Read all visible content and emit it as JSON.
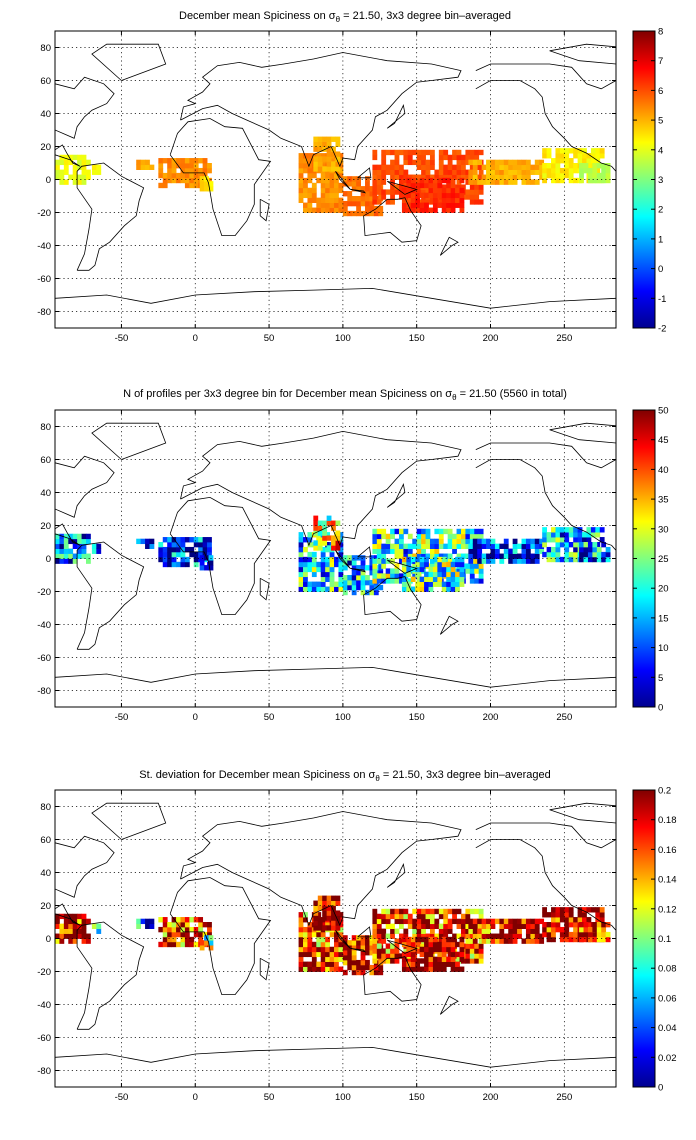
{
  "chart_data": [
    {
      "type": "heatmap",
      "title": "December mean Spiciness on σθ = 21.50, 3x3 degree bin–averaged",
      "title_prefix": "December mean Spiciness on σ",
      "title_sub": "θ",
      "title_suffix": " = 21.50, 3x3 degree bin–averaged",
      "xticks": [
        "-50",
        "0",
        "50",
        "100",
        "150",
        "200",
        "250"
      ],
      "yticks": [
        "80",
        "60",
        "40",
        "20",
        "0",
        "-20",
        "-40",
        "-60",
        "-80"
      ],
      "xlim": [
        -95,
        285
      ],
      "ylim": [
        -90,
        90
      ],
      "grid": true,
      "colorbar": {
        "min": -2,
        "max": 8,
        "ticks": [
          "8",
          "7",
          "6",
          "5",
          "4",
          "3",
          "2",
          "1",
          "0",
          "-1",
          "-2"
        ],
        "colormap": "jet"
      },
      "regions": [
        {
          "lon": [
            -95,
            -72
          ],
          "lat": [
            -3,
            14
          ],
          "value": 4.0
        },
        {
          "lon": [
            -70,
            -65
          ],
          "lat": [
            3,
            9
          ],
          "value": 4.3
        },
        {
          "lon": [
            -40,
            -28
          ],
          "lat": [
            6,
            11
          ],
          "value": 5.0
        },
        {
          "lon": [
            -25,
            10
          ],
          "lat": [
            -5,
            12
          ],
          "value": 5.3
        },
        {
          "lon": [
            3,
            10
          ],
          "lat": [
            -7,
            0
          ],
          "value": 4.5
        },
        {
          "lon": [
            70,
            100
          ],
          "lat": [
            -20,
            15
          ],
          "value": 5.3
        },
        {
          "lon": [
            80,
            98
          ],
          "lat": [
            5,
            24
          ],
          "value": 5.0
        },
        {
          "lon": [
            100,
            125
          ],
          "lat": [
            -22,
            0
          ],
          "value": 5.6
        },
        {
          "lon": [
            120,
            195
          ],
          "lat": [
            -15,
            18
          ],
          "value": 6.0
        },
        {
          "lon": [
            140,
            180
          ],
          "lat": [
            -20,
            0
          ],
          "value": 6.3
        },
        {
          "lon": [
            185,
            235
          ],
          "lat": [
            -3,
            12
          ],
          "value": 5.0
        },
        {
          "lon": [
            235,
            275
          ],
          "lat": [
            -2,
            18
          ],
          "value": 4.3
        },
        {
          "lon": [
            260,
            280
          ],
          "lat": [
            -2,
            8
          ],
          "value": 3.5
        }
      ]
    },
    {
      "type": "heatmap",
      "title": "N of profiles per 3x3 degree bin for December mean Spiciness on σθ = 21.50 (5560 in total)",
      "title_prefix": "N of profiles per 3x3 degree bin for December mean Spiciness on σ",
      "title_sub": "θ",
      "title_suffix": " = 21.50 (5560 in total)",
      "xticks": [
        "-50",
        "0",
        "50",
        "100",
        "150",
        "200",
        "250"
      ],
      "yticks": [
        "80",
        "60",
        "40",
        "20",
        "0",
        "-20",
        "-40",
        "-60",
        "-80"
      ],
      "xlim": [
        -95,
        285
      ],
      "ylim": [
        -90,
        90
      ],
      "grid": true,
      "colorbar": {
        "min": 0,
        "max": 50,
        "ticks": [
          "50",
          "45",
          "40",
          "35",
          "30",
          "25",
          "20",
          "15",
          "10",
          "5",
          "0"
        ],
        "colormap": "jet"
      },
      "regions": [
        {
          "lon": [
            -95,
            -72
          ],
          "lat": [
            -3,
            14
          ],
          "value": 8
        },
        {
          "lon": [
            -70,
            -65
          ],
          "lat": [
            3,
            9
          ],
          "value": 5
        },
        {
          "lon": [
            -40,
            -28
          ],
          "lat": [
            6,
            11
          ],
          "value": 4
        },
        {
          "lon": [
            -25,
            10
          ],
          "lat": [
            -5,
            12
          ],
          "value": 4
        },
        {
          "lon": [
            3,
            10
          ],
          "lat": [
            -7,
            0
          ],
          "value": 4
        },
        {
          "lon": [
            70,
            100
          ],
          "lat": [
            -20,
            15
          ],
          "value": 14
        },
        {
          "lon": [
            80,
            98
          ],
          "lat": [
            5,
            24
          ],
          "value": 28
        },
        {
          "lon": [
            100,
            125
          ],
          "lat": [
            -22,
            0
          ],
          "value": 12
        },
        {
          "lon": [
            120,
            195
          ],
          "lat": [
            -15,
            18
          ],
          "value": 16
        },
        {
          "lon": [
            140,
            180
          ],
          "lat": [
            -20,
            0
          ],
          "value": 18
        },
        {
          "lon": [
            185,
            235
          ],
          "lat": [
            -3,
            12
          ],
          "value": 5
        },
        {
          "lon": [
            235,
            275
          ],
          "lat": [
            -2,
            18
          ],
          "value": 12
        },
        {
          "lon": [
            260,
            280
          ],
          "lat": [
            -2,
            8
          ],
          "value": 8
        }
      ]
    },
    {
      "type": "heatmap",
      "title": "St. deviation for December mean Spiciness on σθ = 21.50, 3x3 degree bin–averaged",
      "title_prefix": "St. deviation for December mean Spiciness on σ",
      "title_sub": "θ",
      "title_suffix": " = 21.50, 3x3 degree bin–averaged",
      "xticks": [
        "-50",
        "0",
        "50",
        "100",
        "150",
        "200",
        "250"
      ],
      "yticks": [
        "80",
        "60",
        "40",
        "20",
        "0",
        "-20",
        "-40",
        "-60",
        "-80"
      ],
      "xlim": [
        -95,
        285
      ],
      "ylim": [
        -90,
        90
      ],
      "grid": true,
      "colorbar": {
        "min": 0,
        "max": 0.2,
        "ticks": [
          "0.2",
          "0.18",
          "0.16",
          "0.14",
          "0.12",
          "0.1",
          "0.08",
          "0.06",
          "0.04",
          "0.02",
          "0"
        ],
        "colormap": "jet"
      },
      "regions": [
        {
          "lon": [
            -95,
            -72
          ],
          "lat": [
            -3,
            14
          ],
          "value": 0.17
        },
        {
          "lon": [
            -70,
            -65
          ],
          "lat": [
            3,
            9
          ],
          "value": 0.05
        },
        {
          "lon": [
            -40,
            -28
          ],
          "lat": [
            6,
            11
          ],
          "value": 0.03
        },
        {
          "lon": [
            -25,
            10
          ],
          "lat": [
            -5,
            12
          ],
          "value": 0.15
        },
        {
          "lon": [
            3,
            10
          ],
          "lat": [
            -7,
            0
          ],
          "value": 0.1
        },
        {
          "lon": [
            70,
            100
          ],
          "lat": [
            -20,
            15
          ],
          "value": 0.15
        },
        {
          "lon": [
            80,
            98
          ],
          "lat": [
            5,
            24
          ],
          "value": 0.18
        },
        {
          "lon": [
            100,
            125
          ],
          "lat": [
            -22,
            0
          ],
          "value": 0.17
        },
        {
          "lon": [
            120,
            195
          ],
          "lat": [
            -15,
            18
          ],
          "value": 0.15
        },
        {
          "lon": [
            140,
            180
          ],
          "lat": [
            -20,
            0
          ],
          "value": 0.19
        },
        {
          "lon": [
            185,
            235
          ],
          "lat": [
            -3,
            12
          ],
          "value": 0.16
        },
        {
          "lon": [
            235,
            275
          ],
          "lat": [
            -2,
            18
          ],
          "value": 0.18
        },
        {
          "lon": [
            260,
            280
          ],
          "lat": [
            -2,
            8
          ],
          "value": 0.15
        }
      ]
    }
  ]
}
